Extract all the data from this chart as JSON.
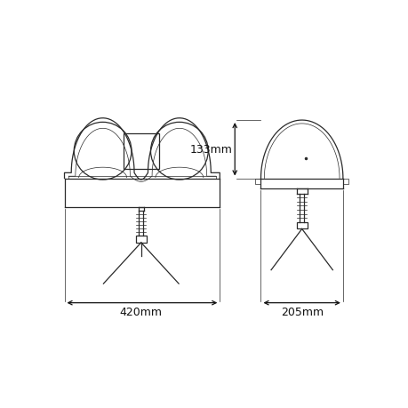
{
  "bg_color": "#ffffff",
  "line_color": "#2a2a2a",
  "dim_color": "#111111",
  "line_width": 0.9,
  "thin_lw": 0.5,
  "font_size": 9,
  "dim_420": "420mm",
  "dim_205": "205mm",
  "dim_133": "133mm"
}
